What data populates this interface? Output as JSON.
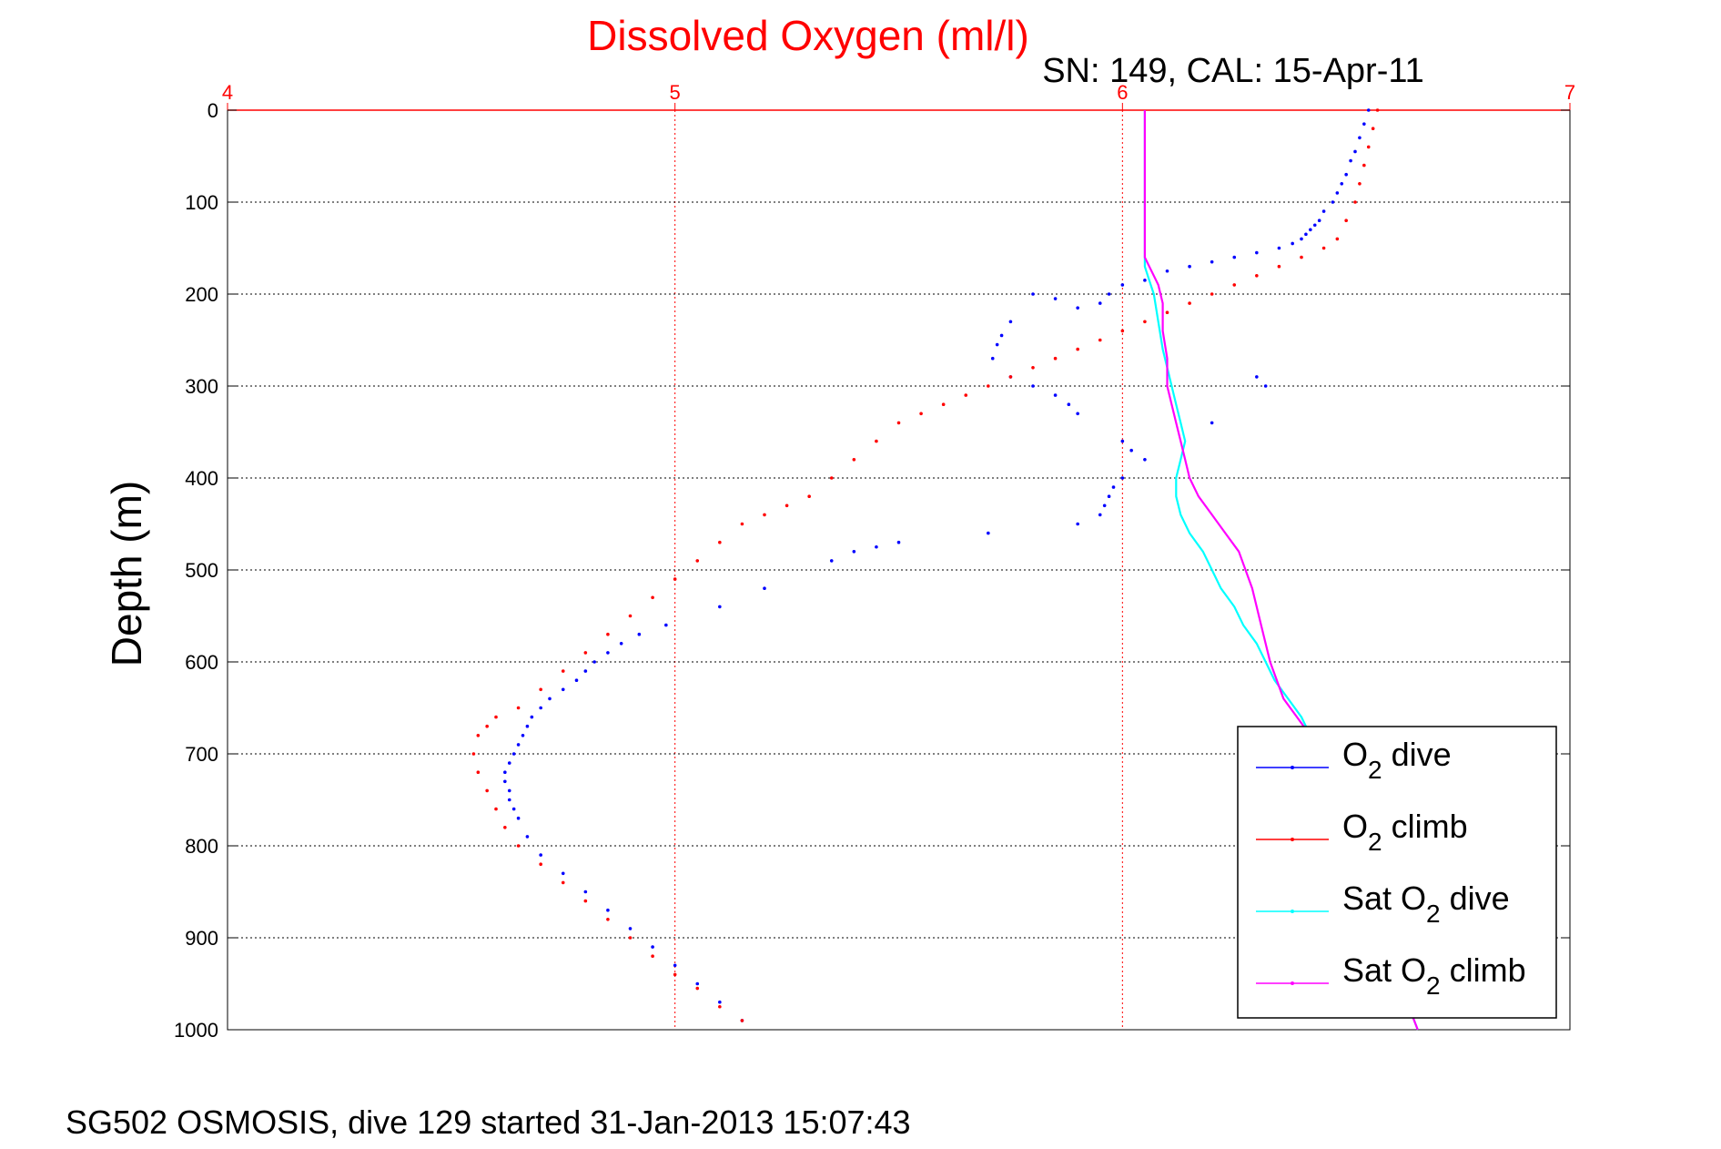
{
  "chart_data": {
    "type": "scatter",
    "title": "Dissolved Oxygen (ml/l)",
    "subtitle": "SN: 149, CAL: 15-Apr-11",
    "caption": "SG502 OSMOSIS, dive 129 started 31-Jan-2013 15:07:43",
    "ylabel": "Depth (m)",
    "xlim": [
      4,
      7
    ],
    "ylim": [
      0,
      1000
    ],
    "y_reversed": true,
    "x_axis_position": "top",
    "x_ticks": [
      "4",
      "5",
      "6",
      "7"
    ],
    "y_ticks": [
      "0",
      "100",
      "200",
      "300",
      "400",
      "500",
      "600",
      "700",
      "800",
      "900",
      "1000"
    ],
    "grid": true,
    "legend_position": "bottom-right",
    "colors": {
      "title": "#ff0000",
      "xaxis": "#ff0000",
      "grid": "#000000"
    },
    "legend": [
      {
        "label_main": "O",
        "label_sub": "2",
        "label_rest": " dive",
        "color": "#0000ff"
      },
      {
        "label_main": "O",
        "label_sub": "2",
        "label_rest": " climb",
        "color": "#ff0000"
      },
      {
        "label_main": "Sat O",
        "label_sub": "2",
        "label_rest": " dive",
        "color": "#00ffff"
      },
      {
        "label_main": "Sat O",
        "label_sub": "2",
        "label_rest": " climb",
        "color": "#ff00ff"
      }
    ],
    "series": [
      {
        "name": "O2 dive",
        "color": "#0000ff",
        "style": "dots",
        "x": [
          6.55,
          6.54,
          6.53,
          6.52,
          6.51,
          6.5,
          6.49,
          6.48,
          6.47,
          6.45,
          6.44,
          6.43,
          6.42,
          6.41,
          6.4,
          6.38,
          6.35,
          6.3,
          6.25,
          6.2,
          6.15,
          6.1,
          6.05,
          6.0,
          5.97,
          5.95,
          5.9,
          5.85,
          5.8,
          5.75,
          5.73,
          5.72,
          5.71,
          5.75,
          5.8,
          5.85,
          5.88,
          5.9,
          6.0,
          6.02,
          6.05,
          6.3,
          6.32,
          6.2,
          6.0,
          5.98,
          5.97,
          5.96,
          5.95,
          5.9,
          5.7,
          5.5,
          5.45,
          5.4,
          5.35,
          5.2,
          5.1,
          4.98,
          4.92,
          4.88,
          4.85,
          4.82,
          4.8,
          4.78,
          4.75,
          4.72,
          4.7,
          4.68,
          4.67,
          4.66,
          4.65,
          4.64,
          4.63,
          4.62,
          4.62,
          4.63,
          4.63,
          4.64,
          4.65,
          4.67,
          4.7,
          4.75,
          4.8,
          4.85,
          4.9,
          4.95,
          5.0,
          5.05,
          5.1,
          5.15
        ],
        "y": [
          0,
          15,
          30,
          45,
          55,
          70,
          80,
          90,
          100,
          110,
          120,
          125,
          130,
          135,
          140,
          145,
          150,
          155,
          160,
          165,
          170,
          175,
          185,
          190,
          200,
          210,
          215,
          205,
          200,
          230,
          245,
          255,
          270,
          290,
          300,
          310,
          320,
          330,
          360,
          370,
          380,
          290,
          300,
          340,
          400,
          410,
          420,
          430,
          440,
          450,
          460,
          470,
          475,
          480,
          490,
          520,
          540,
          560,
          570,
          580,
          590,
          600,
          610,
          620,
          630,
          640,
          650,
          660,
          670,
          680,
          690,
          700,
          710,
          720,
          730,
          740,
          750,
          760,
          770,
          790,
          810,
          830,
          850,
          870,
          890,
          910,
          930,
          950,
          970,
          990
        ]
      },
      {
        "name": "O2 climb",
        "color": "#ff0000",
        "style": "dots",
        "x": [
          6.57,
          6.56,
          6.55,
          6.54,
          6.53,
          6.52,
          6.5,
          6.48,
          6.45,
          6.4,
          6.35,
          6.3,
          6.25,
          6.2,
          6.15,
          6.1,
          6.05,
          6.0,
          5.95,
          5.9,
          5.85,
          5.8,
          5.75,
          5.7,
          5.65,
          5.6,
          5.55,
          5.5,
          5.45,
          5.4,
          5.35,
          5.3,
          5.25,
          5.2,
          5.15,
          5.1,
          5.05,
          5.0,
          4.95,
          4.9,
          4.85,
          4.8,
          4.75,
          4.7,
          4.65,
          4.6,
          4.58,
          4.56,
          4.55,
          4.56,
          4.58,
          4.6,
          4.62,
          4.65,
          4.7,
          4.75,
          4.8,
          4.85,
          4.9,
          4.95,
          5.0,
          5.05,
          5.1,
          5.15
        ],
        "y": [
          0,
          20,
          40,
          60,
          80,
          100,
          120,
          140,
          150,
          160,
          170,
          180,
          190,
          200,
          210,
          220,
          230,
          240,
          250,
          260,
          270,
          280,
          290,
          300,
          310,
          320,
          330,
          340,
          360,
          380,
          400,
          420,
          430,
          440,
          450,
          470,
          490,
          510,
          530,
          550,
          570,
          590,
          610,
          630,
          650,
          660,
          670,
          680,
          700,
          720,
          740,
          760,
          780,
          800,
          820,
          840,
          860,
          880,
          900,
          920,
          940,
          955,
          975,
          990
        ]
      },
      {
        "name": "Sat O2 dive",
        "color": "#00ffff",
        "style": "line",
        "x": [
          6.05,
          6.05,
          6.05,
          6.05,
          6.05,
          6.05,
          6.06,
          6.07,
          6.08,
          6.09,
          6.1,
          6.11,
          6.12,
          6.13,
          6.14,
          6.13,
          6.12,
          6.12,
          6.13,
          6.15,
          6.18,
          6.2,
          6.22,
          6.25,
          6.27,
          6.3,
          6.32,
          6.34,
          6.37,
          6.4,
          6.42,
          6.45,
          6.48,
          6.5,
          6.52,
          6.55,
          6.58,
          6.6,
          6.62,
          6.66
        ],
        "y": [
          0,
          50,
          100,
          130,
          150,
          170,
          185,
          200,
          230,
          260,
          280,
          300,
          320,
          340,
          360,
          380,
          400,
          420,
          440,
          460,
          480,
          500,
          520,
          540,
          560,
          580,
          600,
          620,
          640,
          660,
          680,
          700,
          720,
          740,
          760,
          800,
          850,
          900,
          950,
          1000
        ]
      },
      {
        "name": "Sat O2 climb",
        "color": "#ff00ff",
        "style": "line",
        "x": [
          6.05,
          6.05,
          6.05,
          6.05,
          6.05,
          6.06,
          6.08,
          6.09,
          6.09,
          6.1,
          6.1,
          6.11,
          6.12,
          6.13,
          6.14,
          6.15,
          6.17,
          6.2,
          6.23,
          6.26,
          6.29,
          6.31,
          6.33,
          6.36,
          6.39,
          6.42,
          6.45,
          6.48,
          6.5,
          6.52,
          6.55,
          6.58,
          6.6,
          6.62,
          6.66
        ],
        "y": [
          0,
          50,
          100,
          150,
          160,
          170,
          190,
          210,
          240,
          270,
          300,
          320,
          340,
          360,
          380,
          400,
          420,
          440,
          460,
          480,
          520,
          560,
          600,
          640,
          660,
          680,
          700,
          720,
          740,
          760,
          800,
          850,
          900,
          950,
          1000
        ]
      }
    ]
  }
}
